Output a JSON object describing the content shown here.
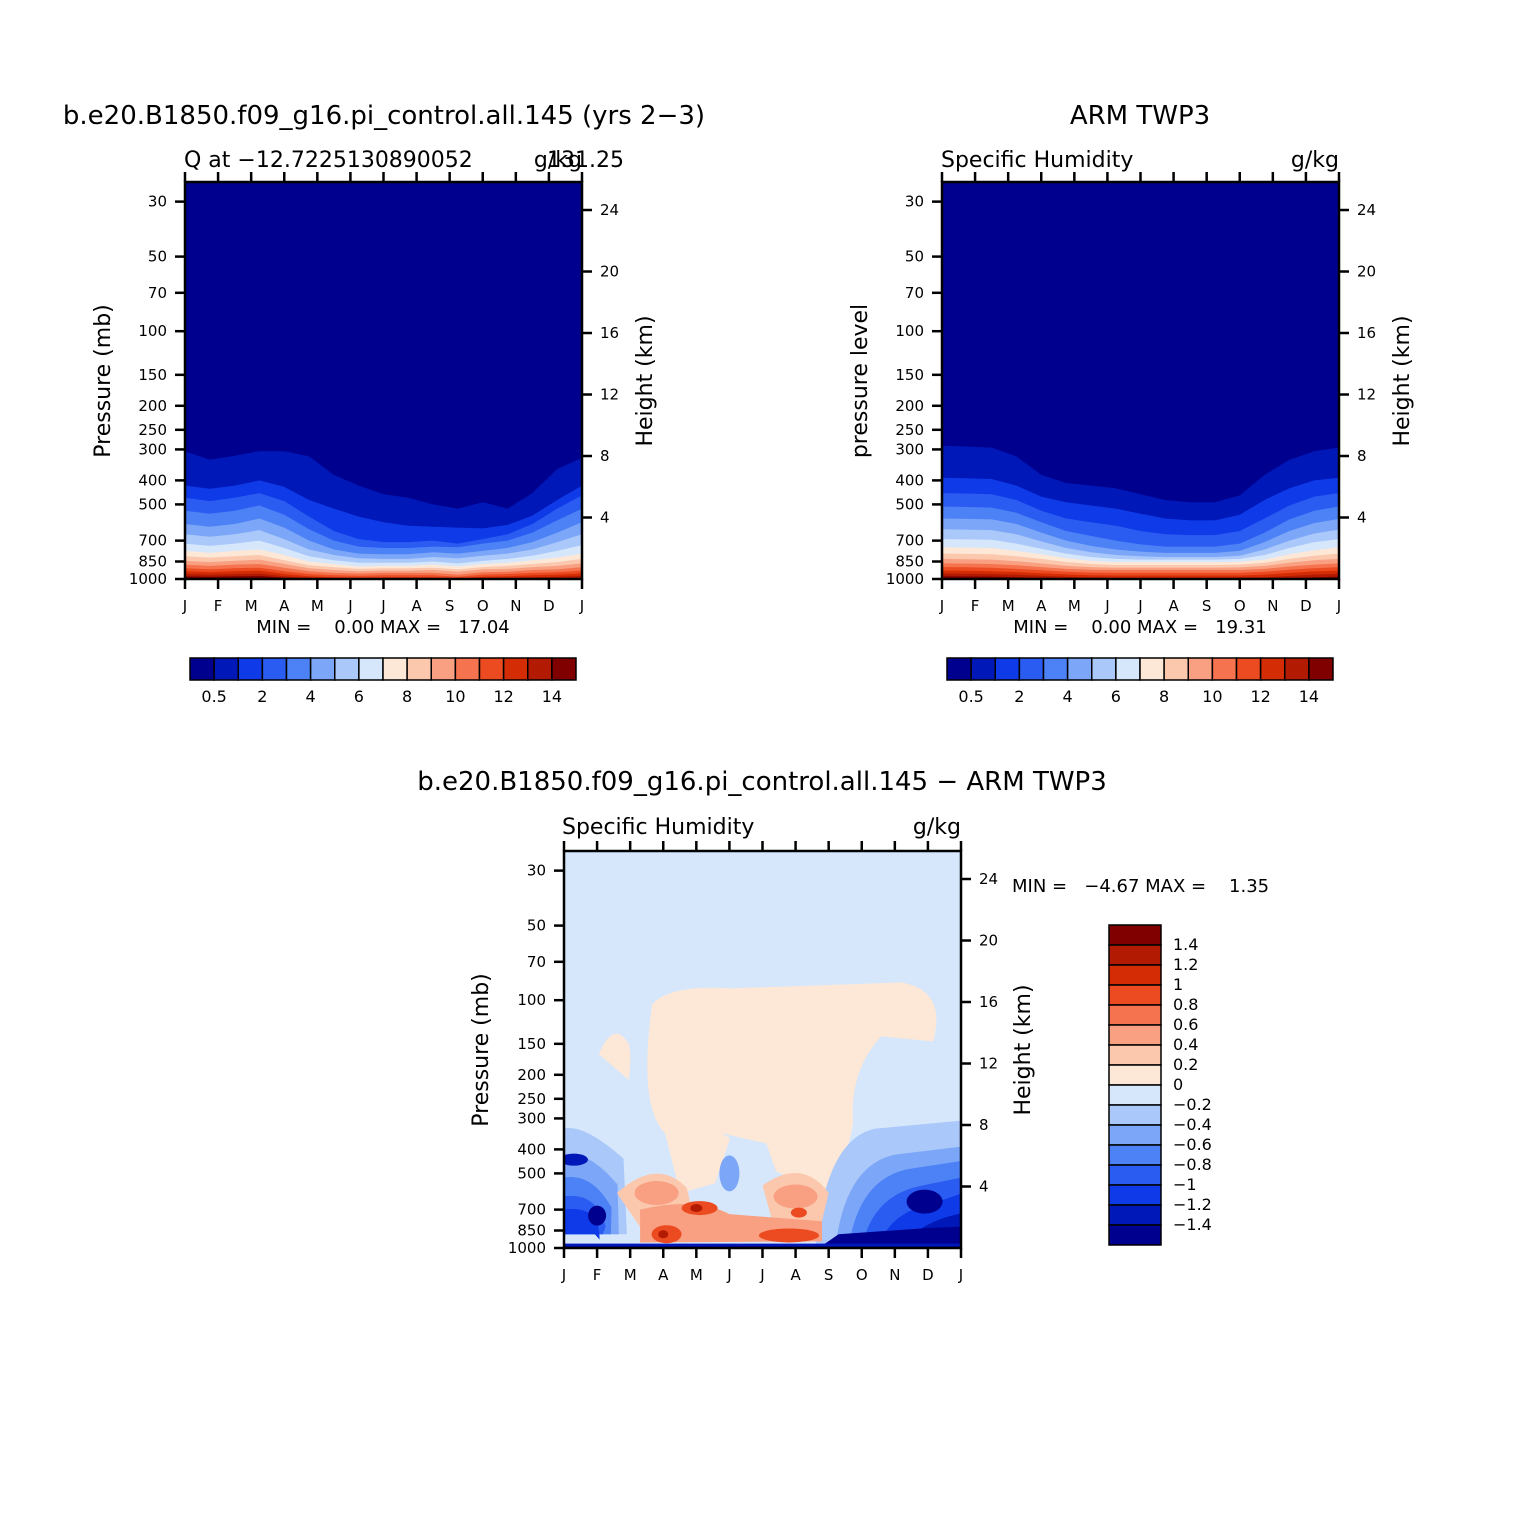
{
  "colors": {
    "sequential": [
      "#00008f",
      "#0018b8",
      "#0f3ae8",
      "#2a5cf2",
      "#4c82f5",
      "#7ca6f7",
      "#aac8f9",
      "#d6e7fc",
      "#fde7d6",
      "#fbc7ad",
      "#f8a081",
      "#f5734e",
      "#ec4a20",
      "#d42d05",
      "#b21b01",
      "#800000"
    ],
    "diverging": [
      "#00008f",
      "#0018b8",
      "#0f3ae8",
      "#2a5cf2",
      "#4c82f5",
      "#7ca6f7",
      "#aac8f9",
      "#d6e7fc",
      "#fde7d6",
      "#fbc7ad",
      "#f8a081",
      "#f5734e",
      "#ec4a20",
      "#d42d05",
      "#b21b01",
      "#800000"
    ]
  },
  "panels": {
    "model": {
      "title": "b.e20.B1850.f09_g16.pi_control.all.145 (yrs 2−3)",
      "subtitle_left": "Q at −12.7225130890052",
      "subtitle_right": "g/kg",
      "subtitle_overlap": "131.25",
      "ylabel": "Pressure (mb)",
      "ylabel_right": "Height (km)",
      "minmax": "MIN =    0.00 MAX =   17.04"
    },
    "obs": {
      "title": "ARM TWP3",
      "subtitle_left": "Specific Humidity",
      "subtitle_right": "g/kg",
      "ylabel": "pressure level",
      "ylabel_right": "Height (km)",
      "minmax": "MIN =    0.00 MAX =   19.31"
    },
    "diff": {
      "title": "b.e20.B1850.f09_g16.pi_control.all.145 − ARM TWP3",
      "subtitle_left": "Specific Humidity",
      "subtitle_right": "g/kg",
      "ylabel": "Pressure (mb)",
      "ylabel_right": "Height (km)",
      "minmax": "MIN =   −4.67 MAX =    1.35"
    }
  },
  "chart_data": [
    {
      "type": "heatmap",
      "title": "b.e20.B1850.f09_g16.pi_control.all.145 (yrs 2−3)",
      "subtitle": "Q at −12.7225130890052 131.25",
      "units": "g/kg",
      "xlabel": "",
      "ylabel": "Pressure (mb)",
      "ylabel_right": "Height (km)",
      "x_ticks": [
        "J",
        "F",
        "M",
        "A",
        "M",
        "J",
        "J",
        "A",
        "S",
        "O",
        "N",
        "D",
        "J"
      ],
      "y_ticks": [
        30,
        50,
        70,
        100,
        150,
        200,
        250,
        300,
        400,
        500,
        700,
        850,
        1000
      ],
      "y_ticks_right": [
        4,
        8,
        12,
        16,
        20,
        24
      ],
      "y_scale": "log",
      "ylim": [
        1000,
        25
      ],
      "contour_levels": [
        0.5,
        1,
        2,
        3,
        4,
        5,
        6,
        7,
        8,
        9,
        10,
        11,
        12,
        13,
        14
      ],
      "colorbar_labels": [
        "0.5",
        "2",
        "4",
        "6",
        "8",
        "10",
        "12",
        "14"
      ],
      "min": 0.0,
      "max": 17.04,
      "contour_pressure_levels_mb": [
        [
          305,
          330,
          318,
          305,
          305,
          320,
          380,
          420,
          455,
          470,
          500,
          520,
          490,
          520,
          450,
          360,
          325
        ],
        [
          420,
          432,
          420,
          400,
          425,
          480,
          520,
          560,
          590,
          610,
          615,
          620,
          625,
          605,
          555,
          480,
          420
        ],
        [
          470,
          485,
          470,
          450,
          485,
          560,
          640,
          690,
          710,
          710,
          700,
          720,
          690,
          660,
          600,
          520,
          460
        ],
        [
          530,
          545,
          530,
          505,
          550,
          630,
          700,
          740,
          750,
          750,
          740,
          745,
          720,
          700,
          650,
          580,
          520
        ],
        [
          600,
          615,
          600,
          570,
          620,
          700,
          760,
          790,
          795,
          795,
          780,
          790,
          770,
          750,
          710,
          650,
          590
        ],
        [
          660,
          675,
          660,
          635,
          690,
          760,
          800,
          825,
          830,
          830,
          815,
          825,
          805,
          790,
          760,
          710,
          660
        ],
        [
          720,
          735,
          720,
          700,
          750,
          810,
          840,
          860,
          860,
          860,
          850,
          865,
          845,
          830,
          805,
          770,
          730
        ],
        [
          770,
          785,
          770,
          760,
          800,
          850,
          870,
          890,
          885,
          885,
          875,
          890,
          870,
          860,
          840,
          820,
          790
        ],
        [
          810,
          820,
          810,
          800,
          840,
          880,
          895,
          910,
          905,
          905,
          900,
          915,
          895,
          885,
          870,
          855,
          830
        ],
        [
          845,
          855,
          845,
          835,
          870,
          905,
          920,
          930,
          925,
          925,
          920,
          935,
          915,
          910,
          895,
          885,
          865
        ],
        [
          875,
          885,
          875,
          870,
          900,
          930,
          945,
          950,
          945,
          945,
          945,
          960,
          940,
          935,
          920,
          915,
          895
        ],
        [
          905,
          915,
          905,
          900,
          930,
          955,
          965,
          970,
          965,
          965,
          965,
          980,
          960,
          955,
          945,
          940,
          925
        ],
        [
          930,
          940,
          930,
          925,
          955,
          975,
          985,
          990,
          985,
          985,
          985,
          995,
          980,
          975,
          965,
          960,
          950
        ],
        [
          955,
          960,
          955,
          950,
          975,
          990,
          998,
          1000,
          1000,
          1000,
          1000,
          1000,
          998,
          992,
          985,
          980,
          972
        ],
        [
          975,
          980,
          975,
          972,
          990,
          1000,
          1000,
          1000,
          1000,
          1000,
          1000,
          1000,
          1000,
          1000,
          998,
          995,
          990
        ]
      ]
    },
    {
      "type": "heatmap",
      "title": "ARM TWP3",
      "subtitle": "Specific Humidity",
      "units": "g/kg",
      "xlabel": "",
      "ylabel": "pressure level",
      "ylabel_right": "Height (km)",
      "x_ticks": [
        "J",
        "F",
        "M",
        "A",
        "M",
        "J",
        "J",
        "A",
        "S",
        "O",
        "N",
        "D",
        "J"
      ],
      "y_ticks": [
        30,
        50,
        70,
        100,
        150,
        200,
        250,
        300,
        400,
        500,
        700,
        850,
        1000
      ],
      "y_ticks_right": [
        4,
        8,
        12,
        16,
        20,
        24
      ],
      "y_scale": "log",
      "ylim": [
        1000,
        25
      ],
      "contour_levels": [
        0.5,
        1,
        2,
        3,
        4,
        5,
        6,
        7,
        8,
        9,
        10,
        11,
        12,
        13,
        14
      ],
      "colorbar_labels": [
        "0.5",
        "2",
        "4",
        "6",
        "8",
        "10",
        "12",
        "14"
      ],
      "min": 0.0,
      "max": 19.31,
      "contour_pressure_levels_mb": [
        [
          290,
          292,
          295,
          320,
          380,
          410,
          420,
          430,
          455,
          480,
          490,
          490,
          460,
          380,
          330,
          305,
          295
        ],
        [
          390,
          392,
          395,
          420,
          465,
          490,
          505,
          520,
          545,
          570,
          580,
          580,
          550,
          480,
          430,
          400,
          390
        ],
        [
          450,
          452,
          455,
          480,
          530,
          570,
          590,
          610,
          640,
          660,
          665,
          665,
          640,
          570,
          505,
          465,
          450
        ],
        [
          510,
          512,
          515,
          540,
          590,
          640,
          670,
          700,
          725,
          740,
          740,
          740,
          720,
          650,
          575,
          530,
          510
        ],
        [
          570,
          572,
          575,
          600,
          650,
          700,
          735,
          760,
          775,
          785,
          785,
          785,
          770,
          710,
          640,
          595,
          572
        ],
        [
          630,
          632,
          635,
          660,
          705,
          750,
          780,
          800,
          810,
          815,
          815,
          815,
          805,
          760,
          700,
          655,
          632
        ],
        [
          690,
          692,
          695,
          720,
          755,
          790,
          815,
          830,
          835,
          835,
          835,
          835,
          830,
          800,
          750,
          710,
          690
        ],
        [
          745,
          747,
          750,
          770,
          795,
          825,
          845,
          855,
          855,
          855,
          855,
          855,
          852,
          835,
          795,
          765,
          745
        ],
        [
          790,
          792,
          795,
          810,
          830,
          855,
          870,
          878,
          878,
          878,
          878,
          878,
          875,
          860,
          830,
          805,
          790
        ],
        [
          830,
          832,
          835,
          848,
          865,
          885,
          895,
          900,
          900,
          900,
          900,
          900,
          898,
          885,
          860,
          840,
          830
        ],
        [
          865,
          867,
          870,
          880,
          895,
          910,
          918,
          920,
          920,
          920,
          920,
          920,
          920,
          910,
          890,
          875,
          865
        ],
        [
          895,
          897,
          900,
          910,
          922,
          935,
          942,
          945,
          945,
          945,
          945,
          945,
          945,
          935,
          918,
          905,
          895
        ],
        [
          925,
          927,
          930,
          938,
          948,
          958,
          965,
          968,
          968,
          968,
          968,
          968,
          968,
          960,
          945,
          933,
          925
        ],
        [
          950,
          952,
          955,
          962,
          970,
          980,
          986,
          990,
          990,
          990,
          990,
          990,
          990,
          985,
          972,
          960,
          952
        ],
        [
          975,
          976,
          978,
          984,
          992,
          1000,
          1000,
          1000,
          1000,
          1000,
          1000,
          1000,
          1000,
          1000,
          995,
          985,
          978
        ]
      ]
    },
    {
      "type": "heatmap",
      "title": "b.e20.B1850.f09_g16.pi_control.all.145 − ARM TWP3",
      "subtitle": "Specific Humidity",
      "units": "g/kg",
      "xlabel": "",
      "ylabel": "Pressure (mb)",
      "ylabel_right": "Height (km)",
      "x_ticks": [
        "J",
        "F",
        "M",
        "A",
        "M",
        "J",
        "J",
        "A",
        "S",
        "O",
        "N",
        "D",
        "J"
      ],
      "y_ticks": [
        30,
        50,
        70,
        100,
        150,
        200,
        250,
        300,
        400,
        500,
        700,
        850,
        1000
      ],
      "y_ticks_right": [
        4,
        8,
        12,
        16,
        20,
        24
      ],
      "y_scale": "log",
      "ylim": [
        1000,
        25
      ],
      "contour_levels": [
        -1.4,
        -1.2,
        -1,
        -0.8,
        -0.6,
        -0.4,
        -0.2,
        0,
        0.2,
        0.4,
        0.6,
        0.8,
        1,
        1.2,
        1.4
      ],
      "colorbar_labels": [
        "1.4",
        "1.2",
        "1",
        "0.8",
        "0.6",
        "0.4",
        "0.2",
        "0",
        "−0.2",
        "−0.4",
        "−0.6",
        "−0.8",
        "−1",
        "−1.2",
        "−1.4"
      ],
      "min": -4.67,
      "max": 1.35,
      "background_level": "-0.2..0",
      "features": [
        {
          "level": "0..0.2",
          "desc": "positive anomaly aloft",
          "month_range": [
            2.3,
            11.4
          ],
          "pressure_range_mb": [
            88,
            660
          ]
        },
        {
          "level": "0..0.2",
          "desc": "small positive patch",
          "month_range": [
            0.9,
            1.9
          ],
          "pressure_range_mb": [
            125,
            200
          ]
        },
        {
          "level": "-0.2..-1.4",
          "desc": "dry anomaly near surface, Sep–Dec",
          "month_range": [
            7.6,
            12.0
          ],
          "pressure_range_mb": [
            330,
            1000
          ]
        },
        {
          "level": "-0.2..-1.4",
          "desc": "dry anomaly, Jan–Feb",
          "month_range": [
            0.0,
            2.2
          ],
          "pressure_range_mb": [
            330,
            870
          ]
        },
        {
          "level": "0.2..1.4",
          "desc": "moist anomaly, Apr–May and Jul–Aug near 700–900 mb",
          "month_range": [
            1.5,
            8.0
          ],
          "pressure_range_mb": [
            460,
            950
          ]
        }
      ]
    }
  ]
}
